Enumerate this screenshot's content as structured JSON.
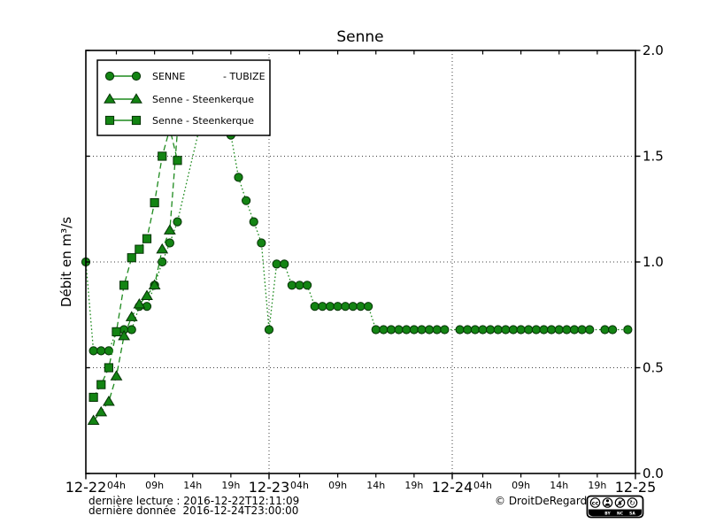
{
  "title": "Senne",
  "colors": {
    "series_line": "#1d8a1d",
    "marker_fill": "#138413",
    "marker_edge": "#063206",
    "grid": "#000000"
  },
  "legend": {
    "entries": [
      {
        "label": "SENNE",
        "label2": "- TUBIZE",
        "marker": "circle"
      },
      {
        "label": "Senne - Steenkerque",
        "label2": "",
        "marker": "triangle"
      },
      {
        "label": "Senne - Steenkerque",
        "label2": "",
        "marker": "square"
      }
    ]
  },
  "y_axis": {
    "label": "Débit en m³/s",
    "ticks": [
      {
        "v": 0.0,
        "label": "0.0"
      },
      {
        "v": 0.5,
        "label": "0.5"
      },
      {
        "v": 1.0,
        "label": "1.0"
      },
      {
        "v": 1.5,
        "label": "1.5"
      },
      {
        "v": 2.0,
        "label": "2.0"
      }
    ]
  },
  "x_axis": {
    "unit": "hours from 2016-12-22 00:00",
    "day_ticks": [
      {
        "t": 0,
        "label": "12-22"
      },
      {
        "t": 24,
        "label": "12-23"
      },
      {
        "t": 48,
        "label": "12-24"
      },
      {
        "t": 72,
        "label": "12-25"
      }
    ],
    "hour_ticks": [
      {
        "t": 4,
        "label": "04h"
      },
      {
        "t": 9,
        "label": "09h"
      },
      {
        "t": 14,
        "label": "14h"
      },
      {
        "t": 19,
        "label": "19h"
      },
      {
        "t": 28,
        "label": "04h"
      },
      {
        "t": 33,
        "label": "09h"
      },
      {
        "t": 38,
        "label": "14h"
      },
      {
        "t": 43,
        "label": "19h"
      },
      {
        "t": 52,
        "label": "04h"
      },
      {
        "t": 57,
        "label": "09h"
      },
      {
        "t": 62,
        "label": "14h"
      },
      {
        "t": 67,
        "label": "19h"
      }
    ]
  },
  "footer": {
    "line1": "dernière lecture : 2016-12-22T12:11:09",
    "line2": "dernière donnée  2016-12-24T23:00:00",
    "copyright": "© DroitDeRegard.be",
    "cc_labels": [
      "BY",
      "NC",
      "SA"
    ]
  },
  "chart_data": {
    "type": "line",
    "title": "Senne",
    "ylabel": "Débit en m³/s",
    "ylim": [
      0.0,
      2.0
    ],
    "xlim_hours": [
      0,
      72
    ],
    "grid": {
      "vertical_t": [
        24,
        48,
        72
      ],
      "horizontal_v": [
        0.5,
        1.0,
        1.5
      ]
    },
    "series": [
      {
        "name": "SENNE - TUBIZE",
        "marker": "circle",
        "line": "dotted",
        "points": [
          [
            0,
            1.0
          ],
          [
            1,
            0.58
          ],
          [
            2,
            0.58
          ],
          [
            3,
            0.58
          ],
          [
            4,
            0.67
          ],
          [
            5,
            0.68
          ],
          [
            6,
            0.68
          ],
          [
            7,
            0.79
          ],
          [
            8,
            0.79
          ],
          [
            9,
            0.89
          ],
          [
            10,
            1.0
          ],
          [
            11,
            1.09
          ],
          [
            12,
            1.19
          ],
          [
            14,
            1.5,
            1
          ],
          [
            15,
            1.65,
            1
          ],
          [
            16,
            1.73,
            1
          ],
          [
            17,
            1.76,
            1
          ],
          [
            18,
            1.71,
            1
          ],
          [
            19,
            1.6
          ],
          [
            20,
            1.4
          ],
          [
            21,
            1.29
          ],
          [
            22,
            1.19
          ],
          [
            23,
            1.09
          ],
          [
            24,
            0.68
          ],
          [
            25,
            0.99
          ],
          [
            26,
            0.99
          ],
          [
            27,
            0.89
          ],
          [
            28,
            0.89
          ],
          [
            29,
            0.89
          ],
          [
            30,
            0.79
          ],
          [
            31,
            0.79
          ],
          [
            32,
            0.79
          ],
          [
            33,
            0.79
          ],
          [
            34,
            0.79
          ],
          [
            35,
            0.79
          ],
          [
            36,
            0.79
          ],
          [
            37,
            0.79
          ],
          [
            38,
            0.68
          ],
          [
            39,
            0.68
          ],
          [
            40,
            0.68
          ],
          [
            41,
            0.68
          ],
          [
            42,
            0.68
          ],
          [
            43,
            0.68
          ],
          [
            44,
            0.68
          ],
          [
            45,
            0.68
          ],
          [
            46,
            0.68
          ],
          [
            47,
            0.68
          ],
          [
            49,
            0.68
          ],
          [
            50,
            0.68
          ],
          [
            51,
            0.68
          ],
          [
            52,
            0.68
          ],
          [
            53,
            0.68
          ],
          [
            54,
            0.68
          ],
          [
            55,
            0.68
          ],
          [
            56,
            0.68
          ],
          [
            57,
            0.68
          ],
          [
            58,
            0.68
          ],
          [
            59,
            0.68
          ],
          [
            60,
            0.68
          ],
          [
            61,
            0.68
          ],
          [
            62,
            0.68
          ],
          [
            63,
            0.68
          ],
          [
            64,
            0.68
          ],
          [
            65,
            0.68
          ],
          [
            66,
            0.68
          ],
          [
            68,
            0.68
          ],
          [
            69,
            0.68
          ],
          [
            71,
            0.68
          ]
        ]
      },
      {
        "name": "Senne - Steenkerque",
        "marker": "triangle",
        "line": "dashed",
        "points": [
          [
            1,
            0.25
          ],
          [
            2,
            0.29
          ],
          [
            3,
            0.34
          ],
          [
            4,
            0.46
          ],
          [
            5,
            0.65
          ],
          [
            6,
            0.74
          ],
          [
            7,
            0.8
          ],
          [
            8,
            0.84
          ],
          [
            9,
            0.89
          ],
          [
            10,
            1.06
          ],
          [
            11,
            1.15
          ],
          [
            12,
            1.62
          ]
        ]
      },
      {
        "name": "Senne - Steenkerque",
        "marker": "square",
        "line": "dashed",
        "points": [
          [
            1,
            0.36
          ],
          [
            2,
            0.42
          ],
          [
            3,
            0.5
          ],
          [
            4,
            0.67
          ],
          [
            5,
            0.89
          ],
          [
            6,
            1.02
          ],
          [
            7,
            1.06
          ],
          [
            8,
            1.11
          ],
          [
            9,
            1.28
          ],
          [
            10,
            1.5
          ],
          [
            11,
            1.63
          ],
          [
            12,
            1.48
          ]
        ]
      }
    ]
  }
}
